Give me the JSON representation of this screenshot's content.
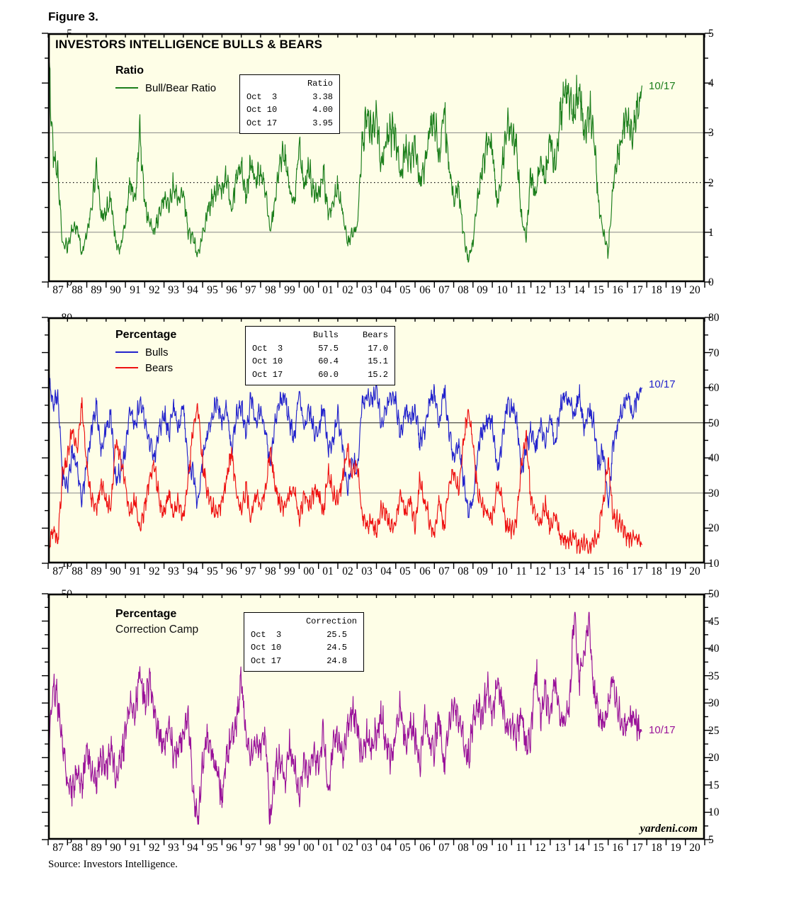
{
  "figure_label": "Figure 3.",
  "source_note": "Source: Investors Intelligence.",
  "watermark": "yardeni.com",
  "colors": {
    "ratio_green": "#1B7E1B",
    "bulls_blue": "#2222CC",
    "bears_red": "#EE1111",
    "correction_purple": "#991199",
    "plot_background": "#FEFEE7",
    "grid_gray": "#888888",
    "grid_black": "#222222",
    "frame_black": "#000000"
  },
  "x_axis": {
    "labels": [
      "87",
      "88",
      "89",
      "90",
      "91",
      "92",
      "93",
      "94",
      "95",
      "96",
      "97",
      "98",
      "99",
      "00",
      "01",
      "02",
      "03",
      "04",
      "05",
      "06",
      "07",
      "08",
      "09",
      "10",
      "11",
      "12",
      "13",
      "14",
      "15",
      "16",
      "17",
      "18",
      "19",
      "20"
    ],
    "start": 1987,
    "end": 2021
  },
  "panels": [
    {
      "title_inside": "INVESTORS INTELLIGENCE BULLS & BEARS",
      "legend_title": "Ratio",
      "legend_items": [
        {
          "label": "Bull/Bear Ratio"
        }
      ],
      "latest_label": "10/17",
      "ylim": [
        0,
        5
      ],
      "ytick_major": 1,
      "ytick_minor": 0.5,
      "ytick_labels": [
        "0",
        "1",
        "2",
        "3",
        "4",
        "5"
      ],
      "gridlines": [
        {
          "v": 1,
          "style": "gray"
        },
        {
          "v": 2,
          "style": "dotted"
        },
        {
          "v": 3,
          "style": "gray"
        }
      ],
      "stat_box": {
        "headers": [
          "Ratio"
        ],
        "rows": [
          {
            "date": "Oct  3",
            "v1": "3.38"
          },
          {
            "date": "Oct 10",
            "v1": "4.00"
          },
          {
            "date": "Oct 17",
            "v1": "3.95"
          }
        ]
      }
    },
    {
      "legend_title": "Percentage",
      "legend_items": [
        {
          "label": "Bulls"
        },
        {
          "label": "Bears"
        }
      ],
      "latest_label": "10/17",
      "ylim": [
        10,
        80
      ],
      "ytick_major": 10,
      "ytick_minor": 5,
      "ytick_labels": [
        "10",
        "20",
        "30",
        "40",
        "50",
        "60",
        "70",
        "80"
      ],
      "gridlines": [
        {
          "v": 50,
          "style": "black"
        },
        {
          "v": 30,
          "style": "gray"
        }
      ],
      "stat_box": {
        "headers": [
          "Bulls",
          "Bears"
        ],
        "rows": [
          {
            "date": "Oct  3",
            "v1": "57.5",
            "v2": "17.0"
          },
          {
            "date": "Oct 10",
            "v1": "60.4",
            "v2": "15.1"
          },
          {
            "date": "Oct 17",
            "v1": "60.0",
            "v2": "15.2"
          }
        ]
      }
    },
    {
      "legend_title": "Percentage",
      "subtitle": "Correction Camp",
      "legend_items": [],
      "latest_label": "10/17",
      "ylim": [
        5,
        50
      ],
      "ytick_major": 5,
      "ytick_minor": 2.5,
      "ytick_labels": [
        "5",
        "10",
        "15",
        "20",
        "25",
        "30",
        "35",
        "40",
        "45",
        "50"
      ],
      "gridlines": [],
      "stat_box": {
        "headers": [
          "Correction"
        ],
        "rows": [
          {
            "date": "Oct  3",
            "v1": "25.5"
          },
          {
            "date": "Oct 10",
            "v1": "24.5"
          },
          {
            "date": "Oct 17",
            "v1": "24.8"
          }
        ]
      }
    }
  ],
  "chart_data": {
    "type": "line",
    "title": "INVESTORS INTELLIGENCE BULLS & BEARS",
    "x_start": 1987.0,
    "x_step": 0.25,
    "x_range": [
      1987,
      2021
    ],
    "grid": "partial-horizontal",
    "legend_position": "inside-top-left",
    "series": [
      {
        "name": "Bull/Bear Ratio",
        "panel": 0,
        "color": "#1B7E1B",
        "ylim": [
          0,
          5
        ],
        "seed": 11,
        "noise_amp": 0.2,
        "amp_rel": true,
        "clamp": [
          0.4,
          4.92
        ],
        "values": [
          4.85,
          2.6,
          2.2,
          0.75,
          0.7,
          1.05,
          1.1,
          0.55,
          1.0,
          1.5,
          2.3,
          1.3,
          1.4,
          1.7,
          0.8,
          0.7,
          1.2,
          2.0,
          1.6,
          3.1,
          1.6,
          1.2,
          1.0,
          1.4,
          1.7,
          1.5,
          2.0,
          1.6,
          1.9,
          1.0,
          0.9,
          0.5,
          1.0,
          1.4,
          1.7,
          1.9,
          1.8,
          2.2,
          1.4,
          2.1,
          2.3,
          1.7,
          2.4,
          2.0,
          2.2,
          1.8,
          1.0,
          1.6,
          2.4,
          2.6,
          1.9,
          1.5,
          2.8,
          1.9,
          2.3,
          1.8,
          1.7,
          2.2,
          1.4,
          1.6,
          1.9,
          1.4,
          0.8,
          1.0,
          1.1,
          2.8,
          3.3,
          3.0,
          3.4,
          2.4,
          2.8,
          3.0,
          2.9,
          2.2,
          2.6,
          2.4,
          2.8,
          2.0,
          2.3,
          3.0,
          3.3,
          2.5,
          3.5,
          2.4,
          1.6,
          1.9,
          1.0,
          0.45,
          0.8,
          1.7,
          2.3,
          2.9,
          2.7,
          1.5,
          2.2,
          3.2,
          2.9,
          2.7,
          1.3,
          0.9,
          2.2,
          1.7,
          2.4,
          2.1,
          3.0,
          2.3,
          3.2,
          3.9,
          3.7,
          3.3,
          4.0,
          2.9,
          3.5,
          3.0,
          1.6,
          1.0,
          0.6,
          1.9,
          2.5,
          3.0,
          3.4,
          2.9,
          3.38,
          3.95
        ]
      },
      {
        "name": "Bulls",
        "panel": 1,
        "color": "#2222CC",
        "ylim": [
          10,
          80
        ],
        "seed": 29,
        "noise_amp": 2.6,
        "amp_rel": false,
        "clamp": [
          23,
          65.5
        ],
        "values": [
          64,
          55,
          58,
          35,
          32,
          42,
          38,
          28,
          38,
          48,
          55,
          42,
          48,
          52,
          33,
          36,
          42,
          55,
          48,
          57,
          50,
          44,
          40,
          48,
          52,
          47,
          55,
          48,
          55,
          38,
          36,
          26,
          40,
          47,
          52,
          56,
          50,
          55,
          42,
          52,
          55,
          47,
          57,
          50,
          54,
          47,
          38,
          50,
          57,
          58,
          50,
          45,
          60,
          48,
          54,
          48,
          47,
          55,
          42,
          46,
          52,
          44,
          30,
          40,
          36,
          55,
          58,
          56,
          60,
          50,
          54,
          58,
          56,
          46,
          54,
          50,
          54,
          44,
          48,
          56,
          58,
          50,
          60,
          48,
          40,
          44,
          34,
          24,
          28,
          42,
          48,
          51,
          50,
          36,
          44,
          55,
          54,
          52,
          36,
          42,
          48,
          42,
          50,
          44,
          52,
          44,
          54,
          58,
          56,
          52,
          58,
          48,
          54,
          50,
          38,
          42,
          26,
          44,
          50,
          54,
          58,
          52,
          57.5,
          60.0
        ]
      },
      {
        "name": "Bears",
        "panel": 1,
        "color": "#EE1111",
        "ylim": [
          10,
          80
        ],
        "seed": 57,
        "noise_amp": 2.4,
        "amp_rel": false,
        "clamp": [
          12.8,
          58.5
        ],
        "values": [
          13,
          20,
          16,
          36,
          40,
          48,
          42,
          55,
          38,
          28,
          25,
          33,
          28,
          25,
          45,
          40,
          32,
          24,
          28,
          20,
          26,
          34,
          38,
          28,
          24,
          30,
          24,
          28,
          22,
          34,
          48,
          55,
          38,
          30,
          26,
          24,
          28,
          34,
          42,
          30,
          25,
          32,
          22,
          30,
          26,
          30,
          42,
          32,
          27,
          26,
          30,
          32,
          22,
          30,
          26,
          30,
          30,
          24,
          36,
          30,
          28,
          34,
          43,
          35,
          38,
          24,
          20,
          22,
          18,
          26,
          24,
          20,
          22,
          30,
          24,
          28,
          20,
          34,
          28,
          22,
          18,
          28,
          20,
          32,
          36,
          30,
          44,
          54,
          44,
          30,
          26,
          24,
          22,
          32,
          28,
          20,
          20,
          22,
          38,
          46,
          28,
          24,
          22,
          26,
          20,
          24,
          18,
          16,
          16,
          18,
          14,
          16,
          14,
          16,
          18,
          28,
          39,
          24,
          22,
          20,
          18,
          17,
          17.0,
          15.2
        ]
      },
      {
        "name": "Correction",
        "panel": 2,
        "color": "#991199",
        "ylim": [
          5,
          50
        ],
        "seed": 83,
        "noise_amp": 2.6,
        "amp_rel": false,
        "clamp": [
          7.8,
          46.6
        ],
        "values": [
          20,
          33,
          30,
          22,
          16,
          14,
          18,
          15,
          22,
          18,
          16,
          20,
          18,
          22,
          16,
          20,
          24,
          30,
          28,
          36,
          30,
          34,
          28,
          24,
          22,
          26,
          20,
          22,
          24,
          28,
          14,
          8,
          20,
          24,
          20,
          18,
          12,
          20,
          24,
          26,
          34,
          24,
          20,
          22,
          22,
          24,
          8,
          18,
          20,
          16,
          22,
          18,
          13,
          20,
          16,
          22,
          18,
          25,
          14,
          22,
          24,
          20,
          26,
          28,
          26,
          20,
          24,
          22,
          24,
          28,
          22,
          20,
          24,
          30,
          22,
          26,
          24,
          18,
          28,
          22,
          22,
          28,
          18,
          26,
          30,
          28,
          24,
          20,
          26,
          30,
          28,
          33,
          28,
          34,
          30,
          25,
          26,
          24,
          28,
          22,
          24,
          36,
          28,
          32,
          28,
          34,
          28,
          26,
          30,
          46,
          34,
          38,
          46,
          32,
          28,
          26,
          30,
          34,
          28,
          26,
          26,
          28,
          25.5,
          24.8
        ]
      }
    ]
  }
}
